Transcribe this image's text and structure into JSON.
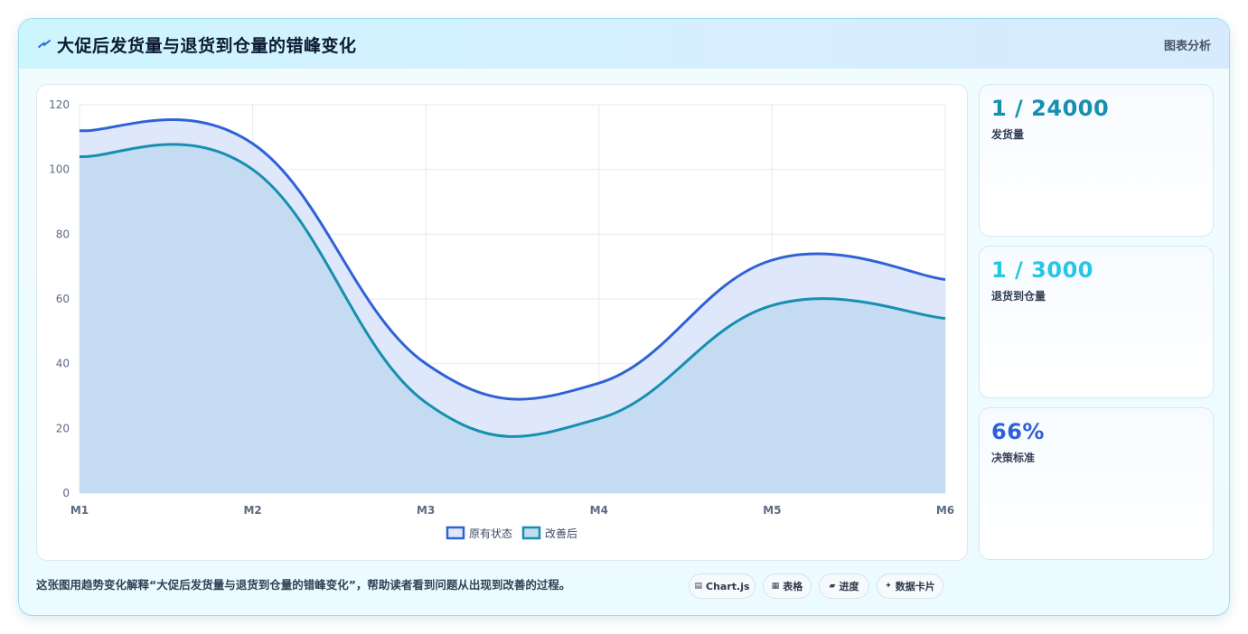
{
  "header": {
    "title": "大促后发货量与退货到仓量的错峰变化",
    "right_label": "图表分析"
  },
  "stats": [
    {
      "value": "1 / 24000",
      "label": "发货量",
      "color": "#168fb0"
    },
    {
      "value": "1 / 3000",
      "label": "退货到仓量",
      "color": "#26c6e4"
    },
    {
      "value": "66%",
      "label": "决策标准",
      "color": "#2f5fd8"
    }
  ],
  "footer": {
    "note": "这张图用趋势变化解释“大促后发货量与退货到仓量的错峰变化”，帮助读者看到问题从出现到改善的过程。",
    "pills": [
      {
        "icon": "chart-icon",
        "glyph": "▤",
        "label": "Chart.js"
      },
      {
        "icon": "table-icon",
        "glyph": "▦",
        "label": "表格"
      },
      {
        "icon": "progress-icon",
        "glyph": "▰",
        "label": "进度"
      },
      {
        "icon": "spark-icon",
        "glyph": "✦",
        "label": "数据卡片"
      }
    ]
  },
  "chart_data": {
    "type": "area",
    "categories": [
      "M1",
      "M2",
      "M3",
      "M4",
      "M5",
      "M6"
    ],
    "series": [
      {
        "name": "原有状态",
        "values": [
          112,
          108,
          40,
          34,
          72,
          66
        ],
        "color": "#2f62d8",
        "fill": "#dfe8fb"
      },
      {
        "name": "改善后",
        "values": [
          104,
          100,
          28,
          23,
          58,
          54
        ],
        "color": "#168fb0",
        "fill": "#c4dbf1"
      }
    ],
    "ylim": [
      0,
      120
    ],
    "yticks": [
      0,
      20,
      40,
      60,
      80,
      100,
      120
    ],
    "grid": true,
    "legend": "bottom-center"
  }
}
